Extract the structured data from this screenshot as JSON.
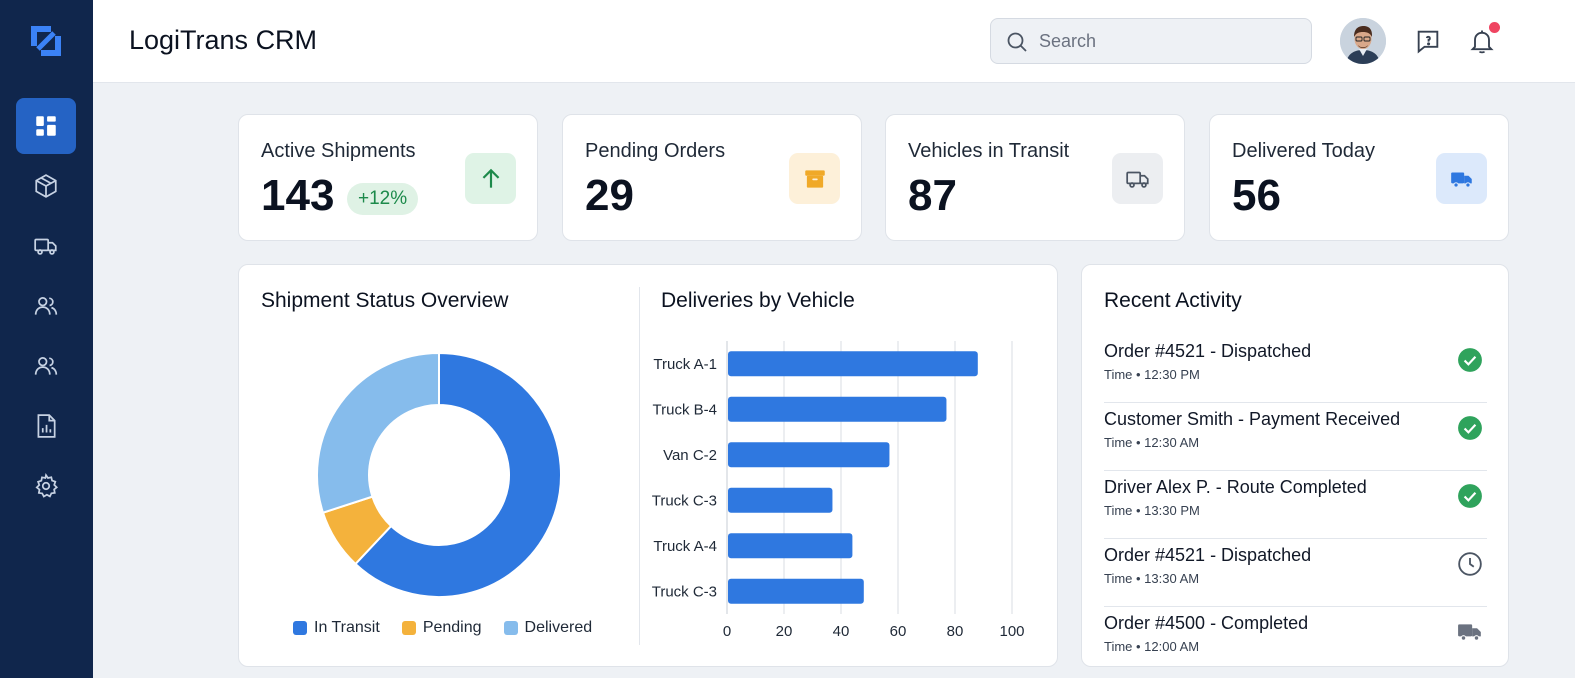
{
  "app": {
    "title": "LogiTrans CRM"
  },
  "sidebar": {
    "items": [
      {
        "name": "dashboard",
        "icon": "dashboard-icon",
        "active": true
      },
      {
        "name": "shipments",
        "icon": "package-icon",
        "active": false
      },
      {
        "name": "vehicles",
        "icon": "truck-icon",
        "active": false
      },
      {
        "name": "customers",
        "icon": "users-icon",
        "active": false
      },
      {
        "name": "drivers",
        "icon": "users-icon",
        "active": false
      },
      {
        "name": "reports",
        "icon": "report-icon",
        "active": false
      },
      {
        "name": "settings",
        "icon": "gear-icon",
        "active": false
      }
    ]
  },
  "header": {
    "search_placeholder": "Search"
  },
  "stats": [
    {
      "label": "Active Shipments",
      "value": "143",
      "badge": "+12%",
      "icon": "arrow-up-icon",
      "icon_bg": "#dff3e6",
      "icon_color": "#1d8a4b"
    },
    {
      "label": "Pending Orders",
      "value": "29",
      "icon": "box-icon",
      "icon_bg": "#fdf0d9",
      "icon_color": "#f0a928"
    },
    {
      "label": "Vehicles in Transit",
      "value": "87",
      "icon": "truck-icon",
      "icon_bg": "#eceef1",
      "icon_color": "#4b5563"
    },
    {
      "label": "Delivered Today",
      "value": "56",
      "icon": "delivery-truck-icon",
      "icon_bg": "#dce9fb",
      "icon_color": "#2f78e0"
    }
  ],
  "charts": {
    "status_title": "Shipment Status Overview",
    "vehicle_title": "Deliveries by Vehicle"
  },
  "chart_data": [
    {
      "type": "pie",
      "title": "Shipment Status Overview",
      "donut": true,
      "categories": [
        "In Transit",
        "Pending",
        "Delivered"
      ],
      "values": [
        62,
        8,
        30
      ],
      "colors": [
        "#2f78e0",
        "#f4b23c",
        "#86bcec"
      ],
      "legend": "bottom"
    },
    {
      "type": "bar",
      "orientation": "horizontal",
      "title": "Deliveries by Vehicle",
      "categories": [
        "Truck A-1",
        "Truck B-4",
        "Van C-2",
        "Truck C-3",
        "Truck A-4",
        "Truck C-3"
      ],
      "values": [
        88,
        77,
        57,
        37,
        44,
        48
      ],
      "xlim": [
        0,
        100
      ],
      "xticks": [
        "0",
        "20",
        "40",
        "60",
        "80",
        "100"
      ],
      "grid": true,
      "color": "#2f78e0"
    }
  ],
  "activity": {
    "title": "Recent Activity",
    "items": [
      {
        "title": "Order #4521 - Dispatched",
        "time": "Time • 12:30 PM",
        "status": "check-circle-icon"
      },
      {
        "title": "Customer Smith - Payment Received",
        "time": "Time • 12:30 AM",
        "status": "check-circle-icon"
      },
      {
        "title": "Driver Alex P. - Route Completed",
        "time": "Time • 13:30 PM",
        "status": "check-circle-icon"
      },
      {
        "title": "Order #4521 - Dispatched",
        "time": "Time • 13:30 AM",
        "status": "clock-icon"
      },
      {
        "title": "Order #4500 - Completed",
        "time": "Time • 12:00 AM",
        "status": "truck-icon"
      }
    ]
  }
}
